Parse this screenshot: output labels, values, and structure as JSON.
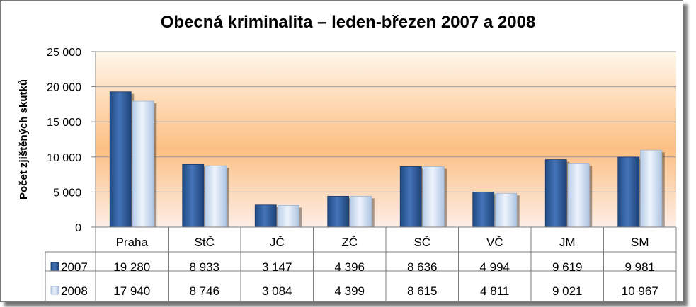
{
  "chart_data": {
    "type": "bar",
    "title": "Obecná kriminalita – leden-březen 2007 a 2008",
    "ylabel": "Počet zjištěných skutků",
    "xlabel": "",
    "ylim": [
      0,
      25000
    ],
    "yticks": [
      0,
      5000,
      10000,
      15000,
      20000,
      25000
    ],
    "ytick_labels": [
      "0",
      "5 000",
      "10 000",
      "15 000",
      "20 000",
      "25 000"
    ],
    "categories": [
      "Praha",
      "StČ",
      "JČ",
      "ZČ",
      "SČ",
      "VČ",
      "JM",
      "SM"
    ],
    "series": [
      {
        "name": "2007",
        "color": "#2e5c9e",
        "values": [
          19280,
          8933,
          3147,
          4396,
          8636,
          4994,
          9619,
          9981
        ],
        "labels": [
          "19 280",
          "8 933",
          "3 147",
          "4 396",
          "8 636",
          "4 994",
          "9 619",
          "9 981"
        ]
      },
      {
        "name": "2008",
        "color": "#c6d9f1",
        "values": [
          17940,
          8746,
          3084,
          4399,
          8615,
          4811,
          9021,
          10967
        ],
        "labels": [
          "17 940",
          "8 746",
          "3 084",
          "4 399",
          "8 615",
          "4 811",
          "9 021",
          "10 967"
        ]
      }
    ],
    "grid": true,
    "legend": "data-table"
  }
}
